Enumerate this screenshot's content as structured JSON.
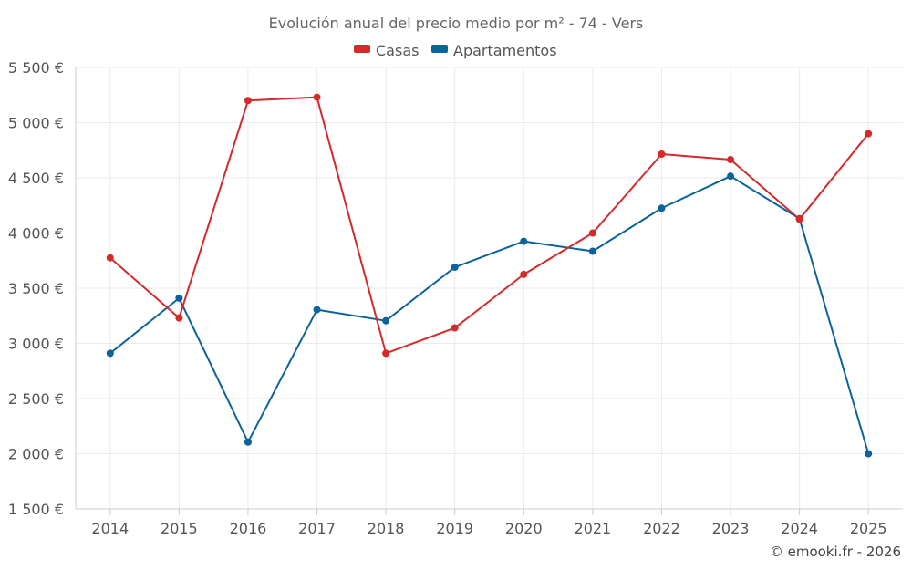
{
  "chart_data": {
    "type": "line",
    "title": "Evolución anual del precio medio por m² - 74 - Vers",
    "categories": [
      "2014",
      "2015",
      "2016",
      "2017",
      "2018",
      "2019",
      "2020",
      "2021",
      "2022",
      "2023",
      "2024",
      "2025"
    ],
    "series": [
      {
        "name": "Casas",
        "color": "#d42a2a",
        "values": [
          3775,
          3230,
          5200,
          5230,
          2910,
          3140,
          3625,
          4000,
          4715,
          4665,
          4125,
          4900
        ]
      },
      {
        "name": "Apartamentos",
        "color": "#0b6399",
        "values": [
          2910,
          3410,
          2105,
          3305,
          3205,
          3690,
          3925,
          3835,
          4225,
          4515,
          4130,
          2000
        ]
      }
    ],
    "ylim": [
      1500,
      5500
    ],
    "yticks": [
      1500,
      2000,
      2500,
      3000,
      3500,
      4000,
      4500,
      5000,
      5500
    ],
    "ytick_labels": [
      "1 500 €",
      "2 000 €",
      "2 500 €",
      "3 000 €",
      "3 500 €",
      "4 000 €",
      "4 500 €",
      "5 000 €",
      "5 500 €"
    ],
    "xlabel": "",
    "ylabel": "",
    "legend": "top-center",
    "grid": true
  },
  "credit": "© emooki.fr - 2026"
}
